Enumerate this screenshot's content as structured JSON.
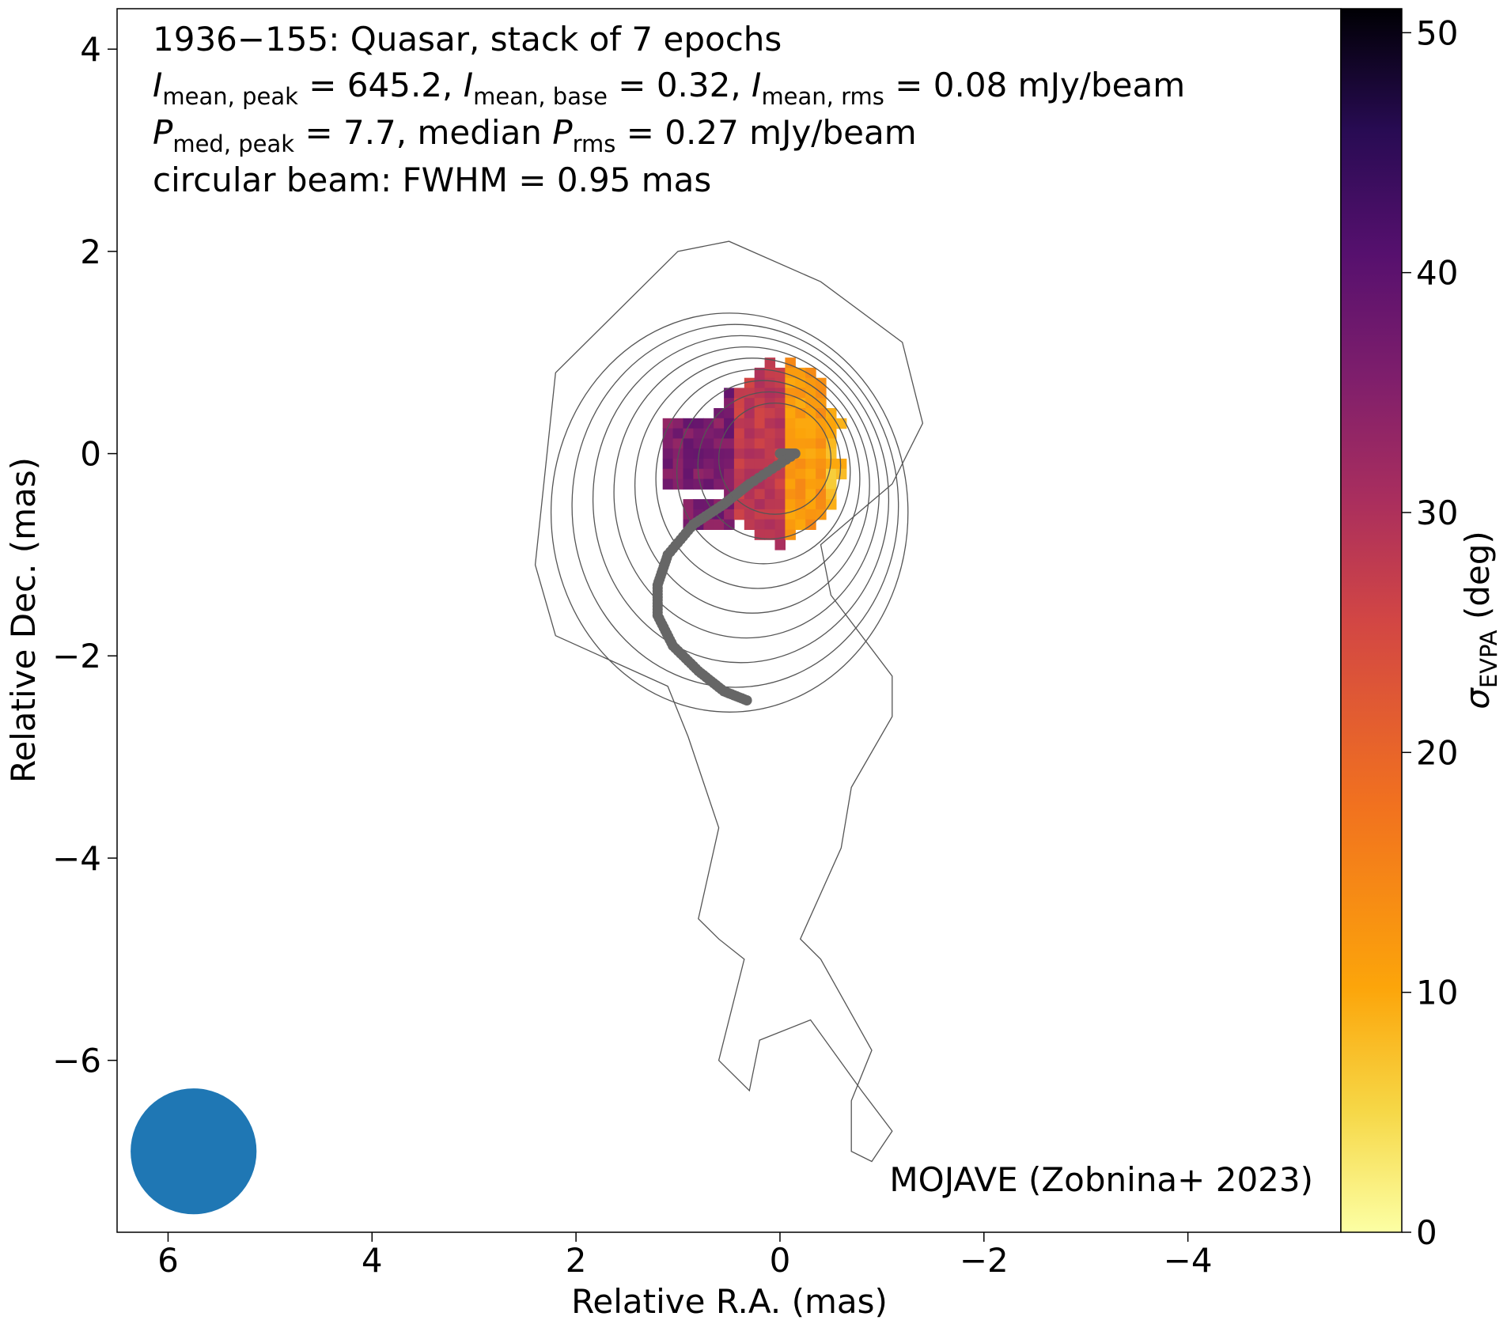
{
  "chart_data": {
    "type": "heatmap",
    "source": "1936−155",
    "annotations": {
      "line1": "1936−155: Quasar, stack of 7 epochs",
      "line2": {
        "i_peak_label": "I",
        "i_peak_sub": "mean, peak",
        "i_peak_value": " = 645.2, ",
        "i_base_label": "I",
        "i_base_sub": "mean, base",
        "i_base_value": " = 0.32, ",
        "i_rms_label": "I",
        "i_rms_sub": "mean, rms",
        "i_rms_value": " = 0.08 mJy/beam"
      },
      "line3": {
        "p_label": "P",
        "p_sub": "med, peak",
        "p_value": " = 7.7, median ",
        "prms_label": "P",
        "prms_sub": "rms",
        "prms_value": " = 0.27 mJy/beam"
      },
      "line4": "circular beam: FWHM = 0.95 mas",
      "credit": "MOJAVE (Zobnina+ 2023)"
    },
    "xlabel": "Relative R.A. (mas)",
    "ylabel": "Relative Dec. (mas)",
    "xlim": [
      6.5,
      -5.5
    ],
    "ylim": [
      -7.7,
      4.4
    ],
    "x_ticks": [
      6,
      4,
      2,
      0,
      -2,
      -4
    ],
    "x_tick_labels": [
      "6",
      "4",
      "2",
      "0",
      "−2",
      "−4"
    ],
    "y_ticks": [
      4,
      2,
      0,
      -2,
      -4,
      -6
    ],
    "y_tick_labels": [
      "4",
      "2",
      "0",
      "−2",
      "−4",
      "−6"
    ],
    "colorbar": {
      "label": "σ",
      "label_sub": "EVPA",
      "label_unit": " (deg)",
      "min": 0,
      "max": 51,
      "ticks": [
        0,
        10,
        20,
        30,
        40,
        50
      ],
      "tick_labels": [
        "0",
        "10",
        "20",
        "30",
        "40",
        "50"
      ],
      "colormap": "inferno_r"
    },
    "beam": {
      "fwhm_mas": 0.95,
      "center": [
        5.75,
        -6.9
      ],
      "color": "#1f77b4"
    },
    "ridge_line": {
      "color": "#666666",
      "x": [
        0.0,
        -0.15,
        0.3,
        0.55,
        0.85,
        1.1,
        1.2,
        1.2,
        1.05,
        0.8,
        0.55,
        0.3
      ],
      "y": [
        0.0,
        0.0,
        -0.3,
        -0.5,
        -0.7,
        -1.0,
        -1.3,
        -1.6,
        -1.9,
        -2.15,
        -2.35,
        -2.45
      ]
    },
    "contour_color": "#555555",
    "heatmap_pixel_mas": 0.1,
    "evpa_sigma_regions": [
      {
        "region": "east core (purple)",
        "sigma_deg": 36
      },
      {
        "region": "central core (red/magenta)",
        "sigma_deg": 28
      },
      {
        "region": "west core (orange)",
        "sigma_deg": 12
      },
      {
        "region": "far west edge (yellow)",
        "sigma_deg": 6
      }
    ],
    "grid": false,
    "legend": "none"
  }
}
